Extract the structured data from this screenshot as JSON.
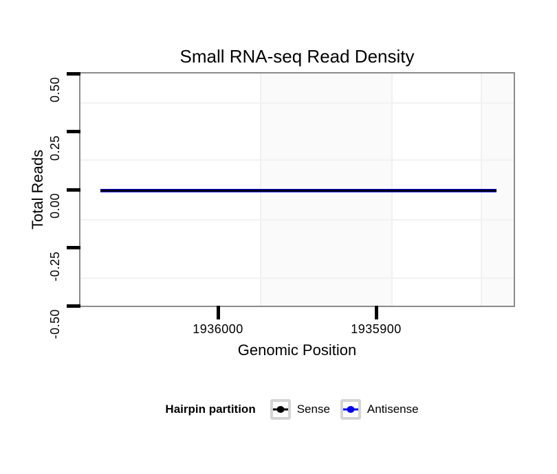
{
  "chart_data": {
    "type": "line",
    "title": "Small RNA-seq Read Density",
    "xlabel": "Genomic Position",
    "ylabel": "Total Reads",
    "x_axis_reversed": true,
    "xlim": [
      1936087,
      1935813
    ],
    "ylim": [
      -0.5,
      0.5
    ],
    "x_tick_values": [
      1936000,
      1935900
    ],
    "x_tick_labels": [
      "1936000",
      "1935900"
    ],
    "y_tick_values": [
      0.5,
      0.25,
      0.0,
      -0.25,
      -0.5
    ],
    "y_tick_labels": [
      "0.50",
      "0.25",
      "0.00",
      "-0.25",
      "-0.50"
    ],
    "grid": "faint-minor-only",
    "panel_border_color": "#8a8a8a",
    "series": [
      {
        "name": "Sense",
        "color": "#000000",
        "points": [
          {
            "x": 1936075,
            "y": 0.0
          },
          {
            "x": 1935825,
            "y": 0.0
          }
        ]
      },
      {
        "name": "Antisense",
        "color": "#0000EE",
        "points": [
          {
            "x": 1936075,
            "y": 0.0
          },
          {
            "x": 1935825,
            "y": 0.0
          }
        ]
      }
    ],
    "legend": {
      "position": "bottom",
      "title": "Hairpin partition",
      "entries": [
        {
          "label": "Sense",
          "color": "#000000"
        },
        {
          "label": "Antisense",
          "color": "#0000EE"
        }
      ]
    }
  }
}
